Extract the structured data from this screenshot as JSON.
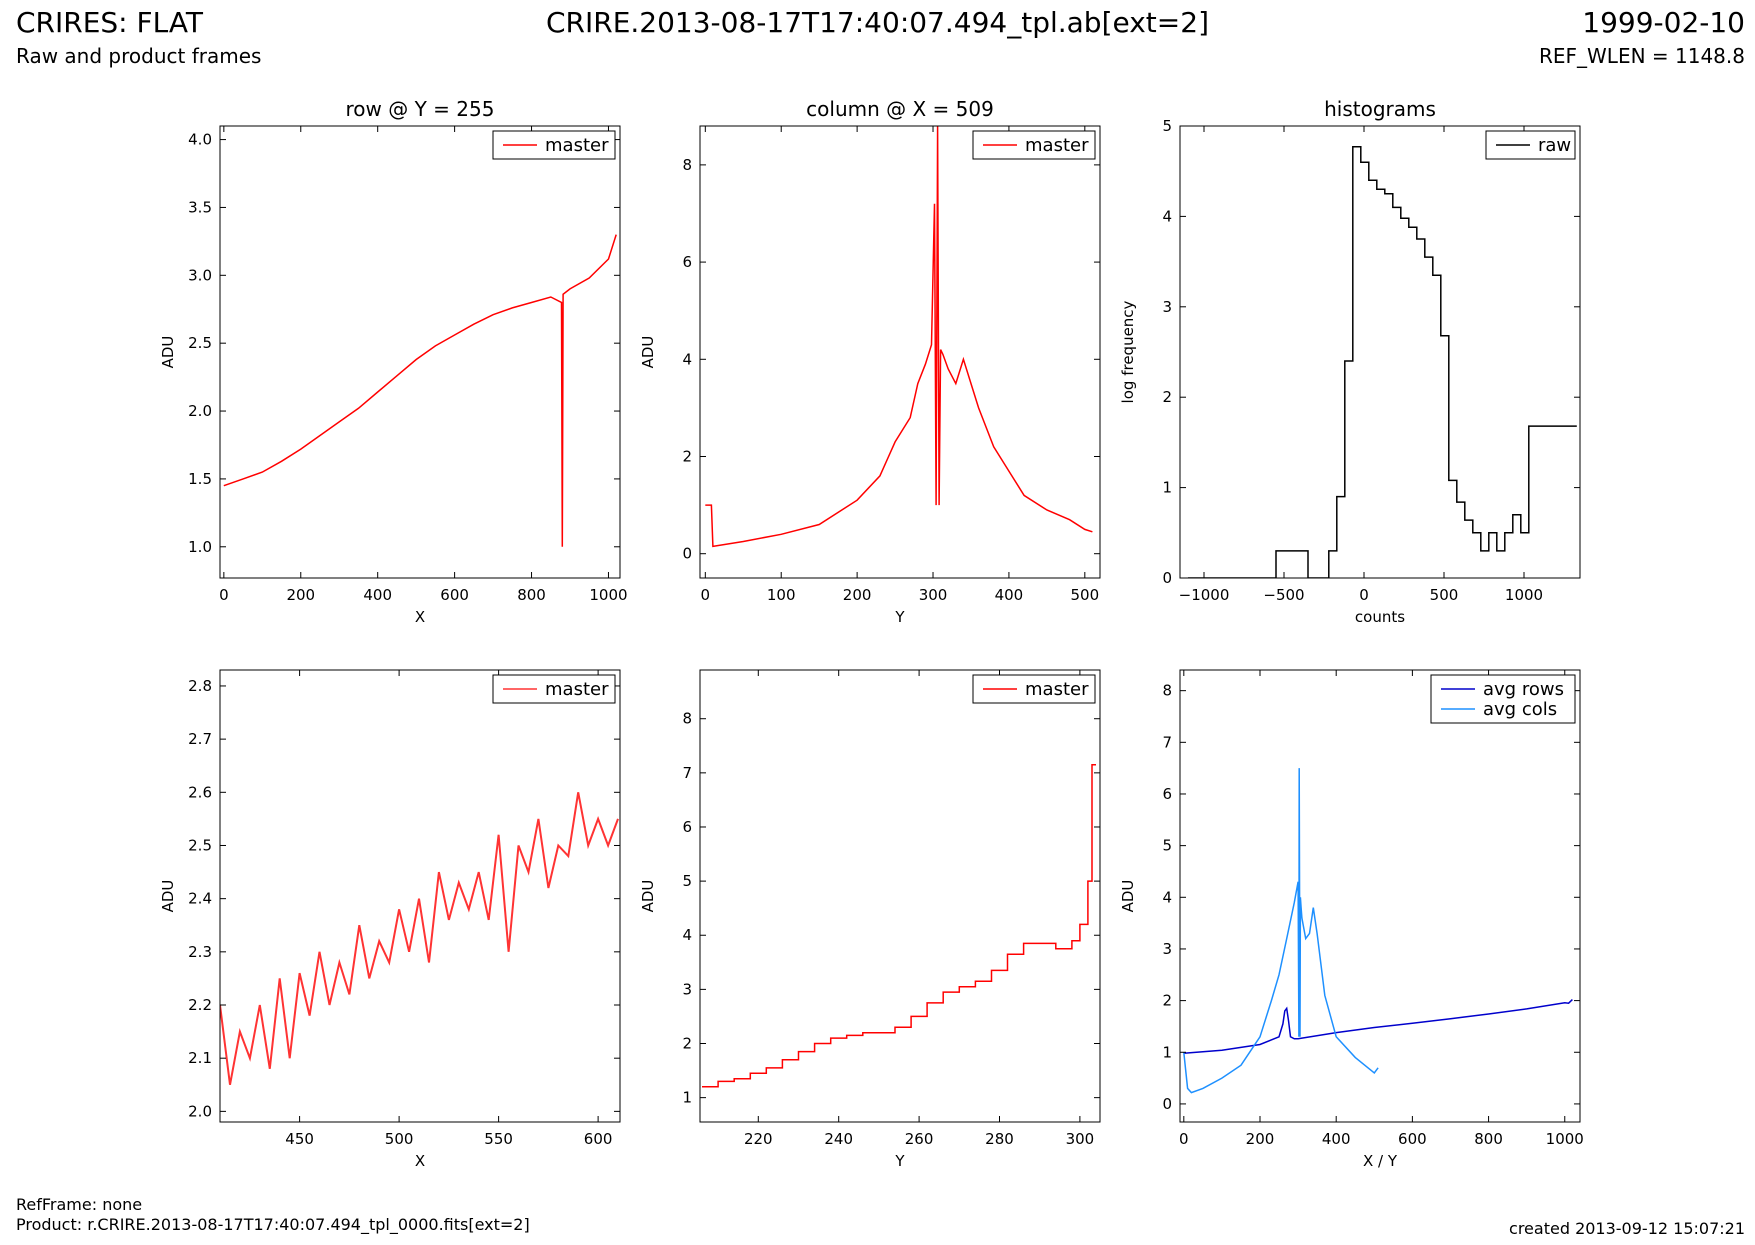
{
  "header": {
    "title_left": "CRIRES: FLAT",
    "subtitle_left": "Raw and product frames",
    "title_center": "CRIRE.2013-08-17T17:40:07.494_tpl.ab[ext=2]",
    "title_right": "1999-02-10",
    "subtitle_right": "REF_WLEN = 1148.8"
  },
  "footer": {
    "refframe": "RefFrame: none",
    "product": "Product: r.CRIRE.2013-08-17T17:40:07.494_tpl_0000.fits[ext=2]",
    "created": "created 2013-09-12 15:07:21"
  },
  "chart_data": [
    {
      "id": "row-full",
      "type": "line",
      "title": "row @ Y = 255",
      "xlabel": "X",
      "ylabel": "ADU",
      "xlim": [
        -10,
        1030
      ],
      "ylim": [
        0.77,
        4.1
      ],
      "xticks": [
        0,
        200,
        400,
        600,
        800,
        1000
      ],
      "yticks": [
        1.0,
        1.5,
        2.0,
        2.5,
        3.0,
        3.5,
        4.0
      ],
      "ytick_labels": [
        "1.0",
        "1.5",
        "2.0",
        "2.5",
        "3.0",
        "3.5",
        "4.0"
      ],
      "legend": "top-right",
      "series": [
        {
          "name": "master",
          "color": "#ff0000",
          "x": [
            0,
            50,
            100,
            150,
            200,
            250,
            300,
            350,
            400,
            450,
            500,
            550,
            600,
            650,
            700,
            750,
            800,
            850,
            878,
            880,
            882,
            900,
            950,
            1000,
            1020
          ],
          "y": [
            1.45,
            1.5,
            1.55,
            1.63,
            1.72,
            1.82,
            1.92,
            2.02,
            2.14,
            2.26,
            2.38,
            2.48,
            2.56,
            2.64,
            2.71,
            2.76,
            2.8,
            2.84,
            2.8,
            1.0,
            2.86,
            2.9,
            2.98,
            3.12,
            3.3
          ]
        }
      ]
    },
    {
      "id": "column-full",
      "type": "line",
      "title": "column @ X = 509",
      "xlabel": "Y",
      "ylabel": "ADU",
      "xlim": [
        -7,
        520
      ],
      "ylim": [
        -0.5,
        8.8
      ],
      "xticks": [
        0,
        100,
        200,
        300,
        400,
        500
      ],
      "yticks": [
        0,
        2,
        4,
        6,
        8
      ],
      "ytick_labels": [
        "0",
        "2",
        "4",
        "6",
        "8"
      ],
      "legend": "top-right",
      "series": [
        {
          "name": "master",
          "color": "#ff0000",
          "x": [
            0,
            8,
            10,
            50,
            100,
            150,
            200,
            230,
            250,
            270,
            280,
            290,
            298,
            302,
            304,
            306,
            308,
            310,
            313,
            320,
            330,
            340,
            350,
            360,
            380,
            400,
            420,
            450,
            480,
            500,
            510
          ],
          "y": [
            1.0,
            1.0,
            0.15,
            0.25,
            0.4,
            0.6,
            1.1,
            1.6,
            2.3,
            2.8,
            3.5,
            3.9,
            4.3,
            7.2,
            1.0,
            8.8,
            1.0,
            4.2,
            4.1,
            3.8,
            3.5,
            4.0,
            3.5,
            3.0,
            2.2,
            1.7,
            1.2,
            0.9,
            0.7,
            0.5,
            0.45
          ]
        }
      ]
    },
    {
      "id": "histograms",
      "type": "line",
      "title": "histograms",
      "xlabel": "counts",
      "ylabel": "log frequency",
      "xlim": [
        -1150,
        1350
      ],
      "ylim": [
        0,
        5
      ],
      "xticks": [
        -1000,
        -500,
        0,
        500,
        1000
      ],
      "xtick_labels": [
        "−1000",
        "−500",
        "0",
        "500",
        "1000"
      ],
      "yticks": [
        0,
        1,
        2,
        3,
        4,
        5
      ],
      "ytick_labels": [
        "0",
        "1",
        "2",
        "3",
        "4",
        "5"
      ],
      "legend": "top-right",
      "series": [
        {
          "name": "raw",
          "color": "#000000",
          "step": true,
          "x": [
            -1100,
            -550,
            -350,
            -220,
            -170,
            -120,
            -70,
            -20,
            30,
            80,
            130,
            180,
            230,
            280,
            330,
            380,
            430,
            480,
            530,
            580,
            630,
            680,
            730,
            780,
            830,
            880,
            930,
            980,
            1030,
            1080,
            1130,
            1180,
            1230,
            1280,
            1330
          ],
          "y": [
            0,
            0.3,
            0,
            0.3,
            0.9,
            2.4,
            4.77,
            4.6,
            4.4,
            4.3,
            4.25,
            4.1,
            3.98,
            3.88,
            3.75,
            3.55,
            3.35,
            2.68,
            1.08,
            0.84,
            0.64,
            0.5,
            0.3,
            0.5,
            0.3,
            0.5,
            0.7,
            0.5,
            1.68,
            1.68,
            1.68,
            1.68,
            1.68,
            1.68,
            1.68
          ]
        }
      ]
    },
    {
      "id": "row-zoom",
      "type": "line",
      "title": "",
      "xlabel": "X",
      "ylabel": "ADU",
      "xlim": [
        410,
        611
      ],
      "ylim": [
        1.98,
        2.83
      ],
      "xticks": [
        450,
        500,
        550,
        600
      ],
      "yticks": [
        2.0,
        2.1,
        2.2,
        2.3,
        2.4,
        2.5,
        2.6,
        2.7,
        2.8
      ],
      "ytick_labels": [
        "2.0",
        "2.1",
        "2.2",
        "2.3",
        "2.4",
        "2.5",
        "2.6",
        "2.7",
        "2.8"
      ],
      "legend": "top-right",
      "series": [
        {
          "name": "master",
          "color": "#ff3333",
          "x": [
            410,
            415,
            420,
            425,
            430,
            435,
            440,
            445,
            450,
            455,
            460,
            465,
            470,
            475,
            480,
            485,
            490,
            495,
            500,
            505,
            510,
            515,
            520,
            525,
            530,
            535,
            540,
            545,
            550,
            555,
            560,
            565,
            570,
            575,
            580,
            585,
            590,
            595,
            600,
            605,
            610
          ],
          "y": [
            2.2,
            2.05,
            2.15,
            2.1,
            2.2,
            2.08,
            2.25,
            2.1,
            2.26,
            2.18,
            2.3,
            2.2,
            2.28,
            2.22,
            2.35,
            2.25,
            2.32,
            2.28,
            2.38,
            2.3,
            2.4,
            2.28,
            2.45,
            2.36,
            2.43,
            2.38,
            2.45,
            2.36,
            2.52,
            2.3,
            2.5,
            2.45,
            2.55,
            2.42,
            2.5,
            2.48,
            2.6,
            2.5,
            2.55,
            2.5,
            2.55
          ]
        }
      ]
    },
    {
      "id": "column-zoom",
      "type": "line",
      "title": "",
      "xlabel": "Y",
      "ylabel": "ADU",
      "xlim": [
        205.5,
        305
      ],
      "ylim": [
        0.55,
        8.9
      ],
      "xticks": [
        220,
        240,
        260,
        280,
        300
      ],
      "yticks": [
        1,
        2,
        3,
        4,
        5,
        6,
        7,
        8
      ],
      "ytick_labels": [
        "1",
        "2",
        "3",
        "4",
        "5",
        "6",
        "7",
        "8"
      ],
      "legend": "top-right",
      "series": [
        {
          "name": "master",
          "color": "#ff0000",
          "step": true,
          "x": [
            206,
            210,
            214,
            218,
            222,
            226,
            230,
            234,
            238,
            242,
            246,
            250,
            254,
            258,
            262,
            266,
            270,
            274,
            278,
            282,
            286,
            290,
            294,
            298,
            300,
            302,
            303,
            304
          ],
          "y": [
            1.2,
            1.3,
            1.35,
            1.45,
            1.55,
            1.7,
            1.85,
            2.0,
            2.1,
            2.15,
            2.2,
            2.2,
            2.3,
            2.5,
            2.75,
            2.95,
            3.05,
            3.15,
            3.35,
            3.65,
            3.85,
            3.85,
            3.75,
            3.9,
            4.2,
            5.0,
            7.15,
            7.15
          ]
        }
      ]
    },
    {
      "id": "averages",
      "type": "line",
      "title": "",
      "xlabel": "X / Y",
      "ylabel": "ADU",
      "xlim": [
        -10,
        1040
      ],
      "ylim": [
        -0.35,
        8.4
      ],
      "xticks": [
        0,
        200,
        400,
        600,
        800,
        1000
      ],
      "yticks": [
        0,
        1,
        2,
        3,
        4,
        5,
        6,
        7,
        8
      ],
      "ytick_labels": [
        "0",
        "1",
        "2",
        "3",
        "4",
        "5",
        "6",
        "7",
        "8"
      ],
      "legend": "top-right",
      "series": [
        {
          "name": "avg rows",
          "color": "#0000cc",
          "x": [
            0,
            100,
            200,
            250,
            260,
            265,
            270,
            275,
            280,
            290,
            300,
            400,
            500,
            600,
            700,
            800,
            900,
            1000,
            1010,
            1020
          ],
          "y": [
            0.98,
            1.04,
            1.15,
            1.3,
            1.55,
            1.8,
            1.85,
            1.6,
            1.3,
            1.26,
            1.26,
            1.38,
            1.48,
            1.56,
            1.65,
            1.74,
            1.84,
            1.96,
            1.95,
            2.02
          ]
        },
        {
          "name": "avg cols",
          "color": "#1e90ff",
          "x": [
            0,
            10,
            20,
            50,
            100,
            150,
            200,
            230,
            250,
            270,
            290,
            300,
            302,
            303,
            305,
            306,
            308,
            310,
            320,
            330,
            340,
            350,
            370,
            400,
            450,
            500,
            510
          ],
          "y": [
            1.0,
            0.3,
            0.22,
            0.3,
            0.5,
            0.75,
            1.3,
            2.0,
            2.5,
            3.2,
            3.9,
            4.3,
            1.3,
            6.5,
            1.3,
            4.0,
            3.8,
            3.6,
            3.2,
            3.3,
            3.8,
            3.3,
            2.1,
            1.3,
            0.9,
            0.6,
            0.7
          ]
        }
      ]
    }
  ]
}
